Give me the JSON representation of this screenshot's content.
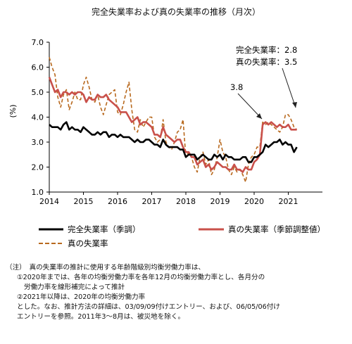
{
  "chart_data": {
    "type": "line",
    "title": "完全失業率および真の失業率の推移（月次）",
    "ylabel": "(%)",
    "ylim": [
      1.0,
      7.0
    ],
    "yticks": [
      "1.0",
      "2.0",
      "3.0",
      "4.0",
      "5.0",
      "6.0",
      "7.0"
    ],
    "xlim": [
      "2014-01",
      "2021-12"
    ],
    "xticks": [
      "2014",
      "2015",
      "2016",
      "2017",
      "2018",
      "2019",
      "2020",
      "2021"
    ],
    "grid": false,
    "legend_position": "bottom",
    "annotations": [
      {
        "text": "完全失業率：2.8",
        "points_to": "2021-04"
      },
      {
        "text": "真の失業率：3.5",
        "points_to": "2021-04"
      },
      {
        "text": "3.8",
        "points_to": "2020-05"
      }
    ],
    "series": [
      {
        "name": "完全失業率（季調）",
        "style": "solid",
        "color": "#000000",
        "start": "2014-01",
        "values": [
          3.7,
          3.6,
          3.6,
          3.6,
          3.5,
          3.7,
          3.8,
          3.5,
          3.6,
          3.5,
          3.5,
          3.4,
          3.6,
          3.5,
          3.4,
          3.3,
          3.3,
          3.4,
          3.3,
          3.4,
          3.4,
          3.2,
          3.3,
          3.3,
          3.2,
          3.3,
          3.2,
          3.2,
          3.2,
          3.1,
          3.0,
          3.1,
          3.0,
          3.0,
          3.1,
          3.1,
          3.0,
          2.9,
          2.9,
          2.8,
          3.1,
          2.9,
          2.8,
          2.8,
          2.8,
          2.8,
          2.7,
          2.7,
          2.4,
          2.5,
          2.5,
          2.5,
          2.3,
          2.4,
          2.5,
          2.4,
          2.3,
          2.3,
          2.5,
          2.4,
          2.5,
          2.3,
          2.5,
          2.4,
          2.4,
          2.3,
          2.3,
          2.3,
          2.4,
          2.4,
          2.2,
          2.2,
          2.4,
          2.4,
          2.5,
          2.6,
          2.9,
          2.8,
          2.9,
          3.0,
          3.0,
          3.1,
          2.9,
          3.0,
          2.9,
          2.9,
          2.6,
          2.8
        ]
      },
      {
        "name": "真の失業率（季節調整値）",
        "style": "solid",
        "color": "#c9504a",
        "start": "2014-01",
        "values": [
          5.6,
          5.3,
          5.0,
          5.1,
          4.8,
          5.0,
          5.0,
          4.9,
          5.0,
          4.9,
          5.0,
          5.0,
          4.9,
          4.6,
          4.8,
          4.7,
          4.7,
          4.9,
          4.8,
          4.8,
          4.9,
          4.7,
          4.6,
          4.5,
          4.4,
          4.2,
          4.2,
          4.2,
          4.0,
          3.8,
          3.9,
          4.0,
          3.7,
          3.8,
          3.8,
          3.7,
          3.6,
          3.3,
          3.3,
          3.2,
          3.6,
          3.3,
          3.2,
          3.1,
          3.0,
          3.1,
          3.1,
          2.8,
          2.6,
          2.6,
          2.4,
          2.4,
          2.1,
          2.2,
          2.3,
          2.0,
          2.1,
          1.9,
          2.0,
          2.2,
          2.1,
          2.0,
          2.0,
          1.9,
          1.9,
          2.1,
          1.9,
          1.9,
          1.8,
          2.0,
          1.9,
          1.9,
          2.2,
          2.3,
          2.5,
          3.7,
          3.8,
          3.7,
          3.8,
          3.7,
          3.6,
          3.7,
          3.6,
          3.6,
          3.7,
          3.5,
          3.5,
          3.5
        ]
      },
      {
        "name": "真の失業率",
        "style": "dashed",
        "color": "#b8691e",
        "start": "2014-01",
        "values": [
          6.4,
          6.0,
          5.7,
          4.8,
          4.4,
          4.9,
          5.1,
          4.3,
          4.6,
          5.0,
          4.7,
          4.7,
          5.3,
          5.6,
          5.2,
          4.7,
          4.6,
          4.9,
          4.4,
          4.1,
          4.5,
          4.9,
          5.0,
          5.1,
          4.2,
          4.1,
          4.5,
          5.0,
          5.4,
          4.3,
          3.5,
          3.4,
          3.9,
          3.6,
          3.8,
          4.0,
          4.0,
          3.2,
          3.0,
          3.1,
          3.9,
          3.0,
          2.8,
          2.7,
          3.0,
          3.4,
          3.5,
          3.9,
          2.4,
          2.6,
          2.4,
          2.0,
          1.8,
          2.4,
          2.6,
          2.1,
          2.3,
          1.7,
          1.9,
          2.4,
          3.1,
          2.6,
          2.4,
          1.9,
          1.7,
          2.0,
          1.8,
          1.9,
          1.7,
          1.4,
          2.1,
          2.4,
          2.5,
          2.8,
          2.8,
          3.8,
          3.7,
          3.8,
          3.7,
          3.6,
          3.5,
          3.4,
          3.6,
          4.1,
          4.1,
          3.9,
          3.6,
          3.5
        ]
      }
    ]
  },
  "note": {
    "lines": [
      "（注）　真の失業率の推計に使用する年齢階級別均衡労働力率は、",
      "①2020年までは、各年の均衡労働力率を各年12月の均衡労働力率とし、各月分の",
      "労働力率を線形補完によって推計",
      "②2021年以降は、2020年の均衡労働力率",
      "とした。なお、推計方法の詳細は、03/09/09付けエントリー、および、06/05/06付け",
      "エントリーを参照。2011年3～8月は、被災地を除く。"
    ]
  }
}
